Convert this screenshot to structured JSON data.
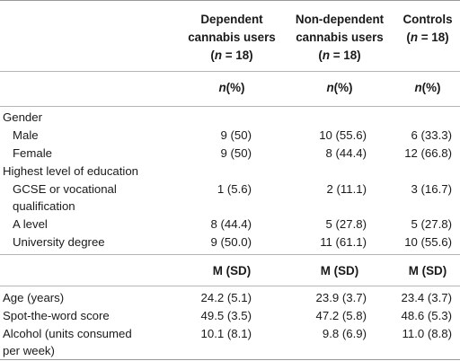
{
  "columns": [
    {
      "line1": "Dependent",
      "line2": "cannabis users",
      "n_label": "n",
      "n_rest": " = 18)"
    },
    {
      "line1": "Non-dependent",
      "line2": "cannabis users",
      "n_label": "n",
      "n_rest": " = 18)"
    },
    {
      "line1": "Controls",
      "n_label": "n",
      "n_rest": " = 18)"
    }
  ],
  "subheader_pct": {
    "n": "n",
    "rest": "(%)"
  },
  "gender": {
    "label": "Gender",
    "rows": [
      {
        "label": "Male",
        "values": [
          "9 (50)",
          "10 (55.6)",
          "6 (33.3)"
        ]
      },
      {
        "label": "Female",
        "values": [
          "9 (50)",
          "8 (44.4)",
          "12 (66.8)"
        ]
      }
    ]
  },
  "education": {
    "label": "Highest level of education",
    "rows": [
      {
        "label_line1": "GCSE or vocational",
        "label_line2": "qualification",
        "values": [
          "1 (5.6)",
          "2 (11.1)",
          "3 (16.7)"
        ]
      },
      {
        "label": "A level",
        "values": [
          "8 (44.4)",
          "5 (27.8)",
          "5 (27.8)"
        ]
      },
      {
        "label": "University degree",
        "values": [
          "9 (50.0)",
          "11 (61.1)",
          "10 (55.6)"
        ]
      }
    ]
  },
  "subheader_msd": "M (SD)",
  "continuous": [
    {
      "label": "Age (years)",
      "values": [
        "24.2 (5.1)",
        "23.9 (3.7)",
        "23.4 (3.7)"
      ]
    },
    {
      "label": "Spot-the-word score",
      "values": [
        "49.5 (3.5)",
        "47.2 (5.8)",
        "48.6 (5.3)"
      ]
    },
    {
      "label_line1": "Alcohol (units consumed",
      "label_line2": "per week)",
      "values": [
        "10.1 (8.1)",
        "9.8 (6.9)",
        "11.0 (8.8)"
      ]
    }
  ]
}
